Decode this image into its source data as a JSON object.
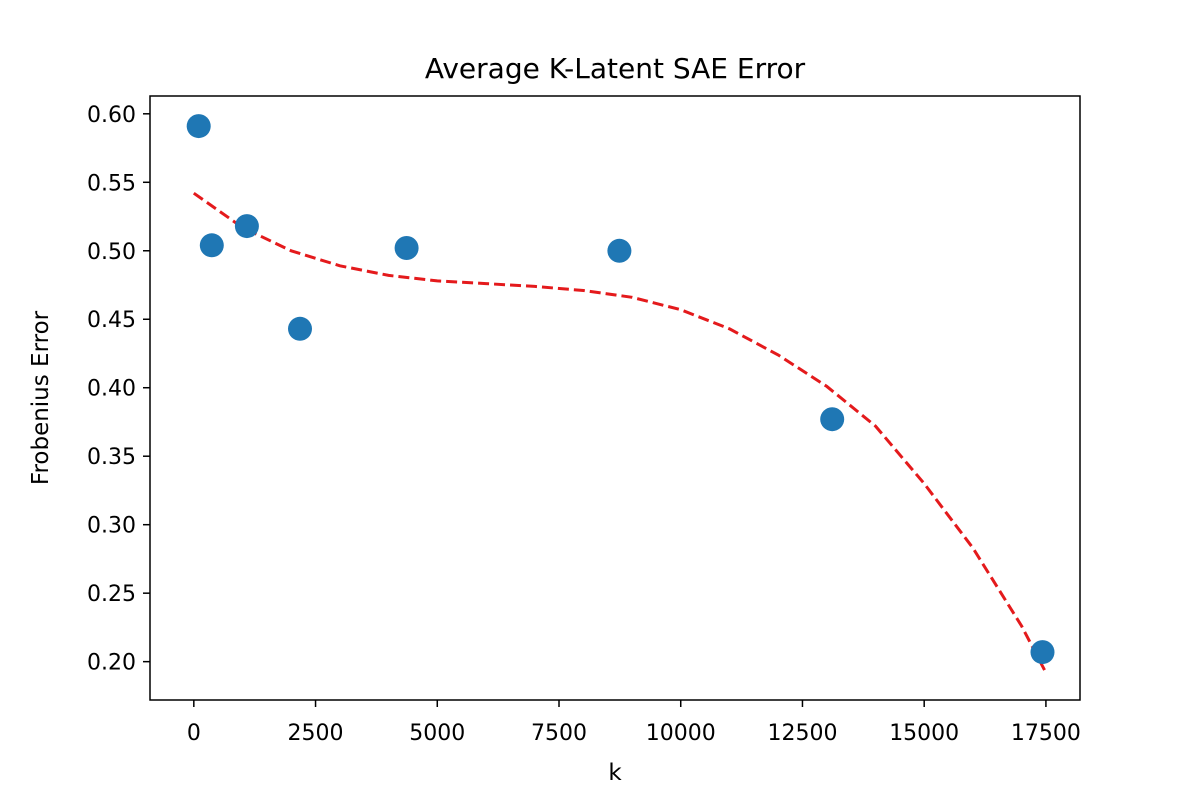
{
  "chart_data": {
    "type": "scatter",
    "title": "Average K-Latent SAE Error",
    "xlabel": "k",
    "ylabel": "Frobenius Error",
    "xlim": [
      -900,
      18200
    ],
    "ylim": [
      0.172,
      0.613
    ],
    "xticks": [
      0,
      2500,
      5000,
      7500,
      10000,
      12500,
      15000,
      17500
    ],
    "yticks": [
      0.2,
      0.25,
      0.3,
      0.35,
      0.4,
      0.45,
      0.5,
      0.55,
      0.6
    ],
    "grid": false,
    "point_color": "#1f77b4",
    "series": [
      {
        "type": "scatter",
        "x": [
          100,
          370,
          1090,
          2180,
          4370,
          8740,
          13110,
          17430
        ],
        "y": [
          0.591,
          0.504,
          0.518,
          0.443,
          0.502,
          0.5,
          0.377,
          0.207
        ]
      }
    ],
    "trend_line": {
      "style": "dashed",
      "color": "#e41a1c",
      "x": [
        0,
        1000,
        2000,
        3000,
        4000,
        5000,
        6000,
        7000,
        8000,
        9000,
        10000,
        11000,
        12000,
        13000,
        14000,
        15000,
        16000,
        17000,
        17500
      ],
      "y": [
        0.542,
        0.517,
        0.5,
        0.489,
        0.482,
        0.478,
        0.476,
        0.474,
        0.471,
        0.466,
        0.457,
        0.443,
        0.424,
        0.401,
        0.372,
        0.33,
        0.283,
        0.226,
        0.192
      ]
    }
  }
}
